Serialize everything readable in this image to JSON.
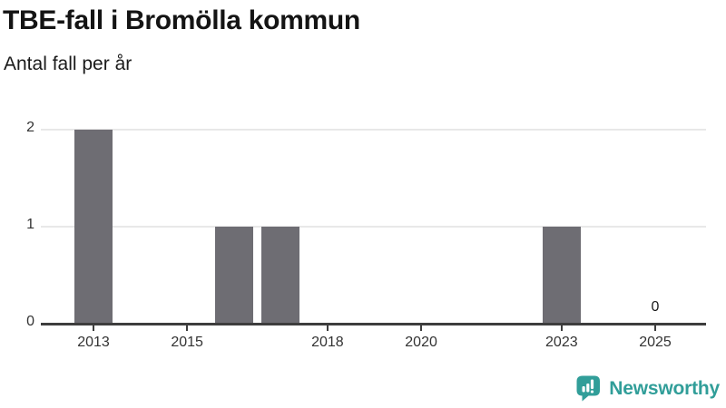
{
  "header": {
    "title": "TBE-fall i Bromölla kommun",
    "subtitle": "Antal fall per år"
  },
  "chart_data": {
    "type": "bar",
    "title": "TBE-fall i Bromölla kommun",
    "subtitle": "Antal fall per år",
    "categories": [
      2013,
      2014,
      2015,
      2016,
      2017,
      2018,
      2019,
      2020,
      2021,
      2022,
      2023,
      2024,
      2025
    ],
    "values": [
      2,
      0,
      0,
      1,
      1,
      0,
      0,
      0,
      0,
      0,
      1,
      0,
      0
    ],
    "xlabel": "",
    "ylabel": "",
    "ylim": [
      0,
      2
    ],
    "yticks": [
      0,
      1,
      2
    ],
    "xticks": [
      2013,
      2015,
      2018,
      2020,
      2023,
      2025
    ],
    "grid": true,
    "legend": false,
    "bar_color": "#6e6d73",
    "annotations": [
      {
        "category": 2025,
        "value": 0,
        "label": "0"
      }
    ],
    "colors": {
      "grid": "#e8e8e8",
      "axis": "#3d3d3d",
      "tick_text": "#333333",
      "annotation_text": "#1a1a1a"
    }
  },
  "branding": {
    "logo_text": "Newsworthy",
    "logo_icon": "newsworthy-speech-bubble-barchart-icon",
    "brand_color": "#319e99"
  }
}
